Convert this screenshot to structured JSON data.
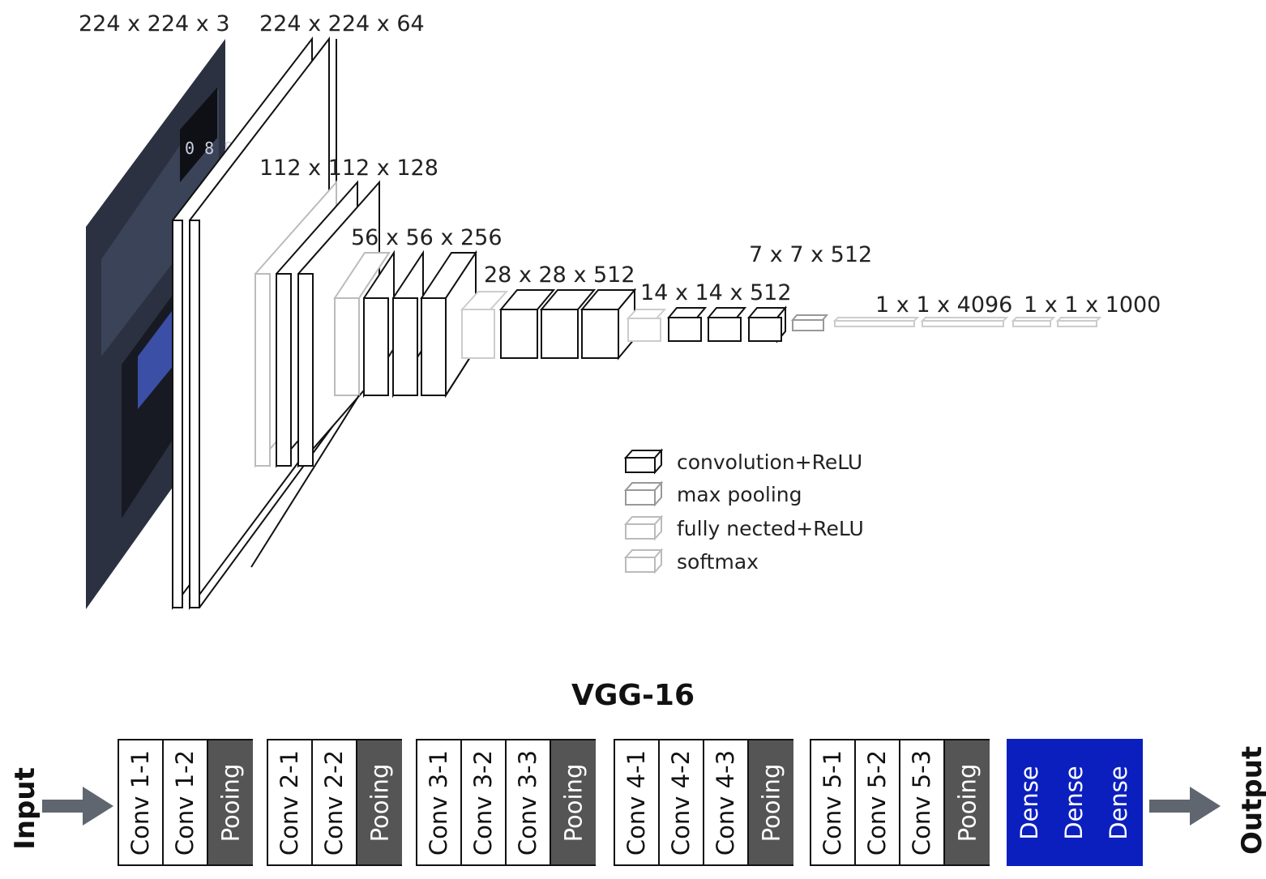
{
  "diagram": {
    "dim_labels": [
      "224 x 224 x 3",
      "224 x 224 x 64",
      "112 x 112 x 128",
      "56 x 56 x 256",
      "28 x 28 x 512",
      "14 x 14 x 512",
      "7 x 7 x 512",
      "1 x 1 x 4096",
      "1 x 1 x 1000"
    ],
    "legend": [
      {
        "label": "convolution+ReLU",
        "color": "#111111"
      },
      {
        "label": "max pooling",
        "color": "#999999"
      },
      {
        "label": "fully nected+ReLU",
        "color": "#bbbbbb"
      },
      {
        "label": "softmax",
        "color": "#bbbbbb"
      }
    ]
  },
  "architecture": {
    "title": "VGG-16",
    "input_label": "Input",
    "output_label": "Output",
    "blocks": [
      {
        "layers": [
          {
            "label": "Conv 1-1",
            "kind": "conv"
          },
          {
            "label": "Conv 1-2",
            "kind": "conv"
          },
          {
            "label": "Pooing",
            "kind": "pool"
          }
        ]
      },
      {
        "layers": [
          {
            "label": "Conv 2-1",
            "kind": "conv"
          },
          {
            "label": "Conv 2-2",
            "kind": "conv"
          },
          {
            "label": "Pooing",
            "kind": "pool"
          }
        ]
      },
      {
        "layers": [
          {
            "label": "Conv 3-1",
            "kind": "conv"
          },
          {
            "label": "Conv 3-2",
            "kind": "conv"
          },
          {
            "label": "Conv 3-3",
            "kind": "conv"
          },
          {
            "label": "Pooing",
            "kind": "pool"
          }
        ]
      },
      {
        "layers": [
          {
            "label": "Conv 4-1",
            "kind": "conv"
          },
          {
            "label": "Conv 4-2",
            "kind": "conv"
          },
          {
            "label": "Conv 4-3",
            "kind": "conv"
          },
          {
            "label": "Pooing",
            "kind": "pool"
          }
        ]
      },
      {
        "layers": [
          {
            "label": "Conv 5-1",
            "kind": "conv"
          },
          {
            "label": "Conv 5-2",
            "kind": "conv"
          },
          {
            "label": "Conv 5-3",
            "kind": "conv"
          },
          {
            "label": "Pooing",
            "kind": "pool"
          }
        ]
      },
      {
        "layers": [
          {
            "label": "Dense",
            "kind": "dense"
          },
          {
            "label": "Dense",
            "kind": "dense"
          },
          {
            "label": "Dense",
            "kind": "dense"
          }
        ]
      }
    ],
    "colors": {
      "pool": "#555555",
      "dense": "#0b1fbf"
    }
  }
}
